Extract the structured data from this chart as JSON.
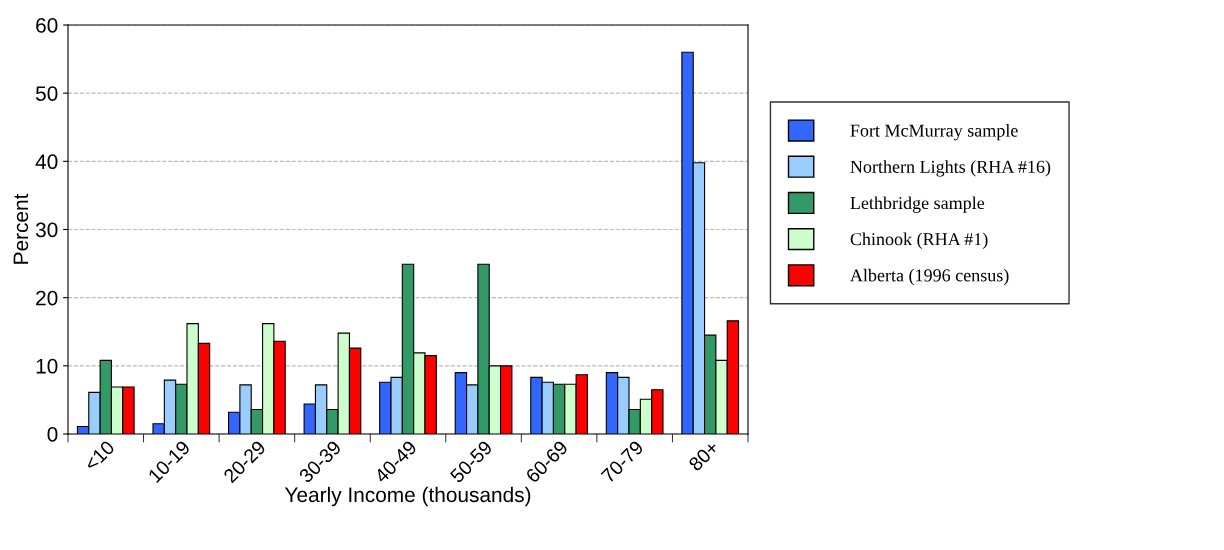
{
  "chart_data": {
    "type": "bar",
    "xlabel": "Yearly Income (thousands)",
    "ylabel": "Percent",
    "categories": [
      "<10",
      "10-19",
      "20-29",
      "30-39",
      "40-49",
      "50-59",
      "60-69",
      "70-79",
      "80+"
    ],
    "series": [
      {
        "name": "Fort McMurray sample",
        "color": "#3366ff",
        "values": [
          1.1,
          1.5,
          3.2,
          4.4,
          7.6,
          9.0,
          8.3,
          9.0,
          56
        ]
      },
      {
        "name": "Northern Lights (RHA #16)",
        "color": "#99ccff",
        "values": [
          6.1,
          7.9,
          7.2,
          7.2,
          8.3,
          7.2,
          7.6,
          8.3,
          39.8
        ]
      },
      {
        "name": "Lethbridge sample",
        "color": "#339966",
        "values": [
          10.8,
          7.3,
          3.6,
          3.6,
          24.9,
          24.9,
          7.3,
          3.6,
          14.5
        ]
      },
      {
        "name": "Chinook (RHA #1)",
        "color": "#ccffcc",
        "values": [
          6.9,
          16.2,
          16.2,
          14.8,
          11.9,
          10.0,
          7.3,
          5.1,
          10.8
        ]
      },
      {
        "name": "Alberta (1996 census)",
        "color": "#ff0000",
        "values": [
          6.9,
          13.3,
          13.6,
          12.6,
          11.5,
          10.0,
          8.7,
          6.5,
          16.6
        ]
      }
    ],
    "ylim": [
      0,
      60
    ],
    "yticks": [
      0,
      10,
      20,
      30,
      40,
      50,
      60
    ],
    "grid": "y",
    "legend": "right"
  }
}
